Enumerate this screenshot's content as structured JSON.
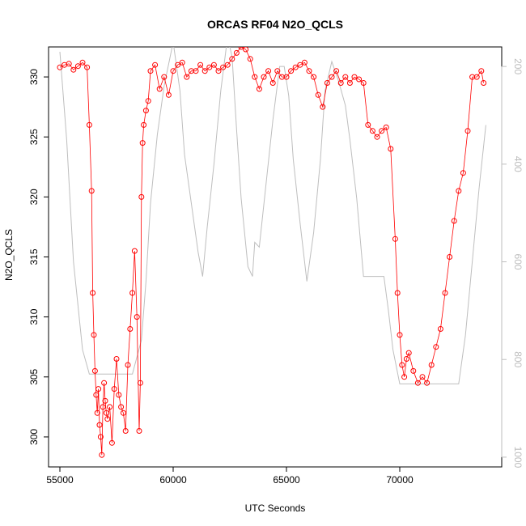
{
  "chart_data": {
    "type": "scatter",
    "title": "ORCAS RF04 N2O_QCLS",
    "xlabel": "UTC Seconds",
    "ylabel": "N2O_QCLS",
    "xlim": [
      54500,
      74500
    ],
    "ylim": [
      297.5,
      332.5
    ],
    "y2lim": [
      1020,
      160
    ],
    "x_ticks": [
      55000,
      60000,
      65000,
      70000
    ],
    "y_ticks": [
      300,
      305,
      310,
      315,
      320,
      325,
      330
    ],
    "y2_ticks": [
      200,
      400,
      600,
      800,
      1000
    ],
    "colors": {
      "points": "#ff0000",
      "secondary": "#bebebe",
      "axis": "#000000"
    },
    "series": [
      {
        "name": "N2O_QCLS",
        "axis": "left",
        "style": "points-and-line",
        "x": [
          55000,
          55200,
          55400,
          55600,
          55800,
          56000,
          56200,
          56300,
          56400,
          56450,
          56500,
          56550,
          56600,
          56650,
          56700,
          56750,
          56800,
          56850,
          56900,
          56950,
          57000,
          57050,
          57100,
          57200,
          57300,
          57400,
          57500,
          57600,
          57700,
          57800,
          57900,
          58000,
          58100,
          58200,
          58300,
          58400,
          58500,
          58550,
          58600,
          58650,
          58700,
          58800,
          58900,
          59000,
          59200,
          59400,
          59600,
          59800,
          60000,
          60200,
          60400,
          60600,
          60800,
          61000,
          61200,
          61400,
          61600,
          61800,
          62000,
          62200,
          62400,
          62600,
          62800,
          63000,
          63200,
          63400,
          63600,
          63800,
          64000,
          64200,
          64400,
          64600,
          64800,
          65000,
          65200,
          65400,
          65600,
          65800,
          66000,
          66200,
          66400,
          66600,
          66800,
          67000,
          67200,
          67400,
          67600,
          67800,
          68000,
          68200,
          68400,
          68600,
          68800,
          69000,
          69200,
          69400,
          69600,
          69800,
          69900,
          70000,
          70100,
          70200,
          70300,
          70400,
          70600,
          70800,
          71000,
          71200,
          71400,
          71600,
          71800,
          72000,
          72200,
          72400,
          72600,
          72800,
          73000,
          73200,
          73400,
          73600,
          73700
        ],
        "values": [
          330.8,
          331.0,
          331.1,
          330.6,
          330.9,
          331.2,
          330.8,
          326.0,
          320.5,
          312.0,
          308.5,
          305.5,
          303.5,
          302.0,
          304.0,
          301.0,
          300.0,
          298.5,
          302.5,
          304.5,
          303.0,
          302.0,
          301.5,
          302.5,
          299.5,
          304.0,
          306.5,
          303.5,
          302.5,
          302.0,
          300.5,
          306.0,
          309.0,
          312.0,
          315.5,
          310.0,
          300.5,
          304.5,
          320.0,
          324.5,
          326.0,
          327.2,
          328.0,
          330.5,
          331.0,
          329.0,
          330.0,
          328.5,
          330.5,
          331.0,
          331.2,
          330.0,
          330.5,
          330.5,
          331.0,
          330.5,
          330.8,
          331.0,
          330.5,
          330.8,
          331.0,
          331.5,
          332.0,
          332.5,
          332.3,
          331.5,
          330.0,
          329.0,
          330.0,
          330.5,
          329.5,
          330.5,
          330.0,
          330.0,
          330.5,
          330.8,
          331.0,
          331.2,
          330.5,
          330.0,
          328.5,
          327.5,
          329.5,
          330.0,
          330.5,
          329.5,
          330.0,
          329.5,
          330.0,
          329.8,
          329.5,
          326.0,
          325.5,
          325.0,
          325.5,
          325.8,
          324.0,
          316.5,
          312.0,
          308.5,
          306.0,
          305.0,
          306.5,
          307.0,
          305.5,
          304.5,
          305.0,
          304.5,
          306.0,
          307.5,
          309.0,
          312.0,
          315.0,
          318.0,
          320.5,
          322.0,
          325.5,
          330.0,
          330.0,
          330.5,
          329.5
        ]
      },
      {
        "name": "secondary",
        "axis": "right",
        "style": "line",
        "x": [
          55000,
          55300,
          55600,
          56000,
          56300,
          56600,
          57000,
          57400,
          57800,
          58200,
          58600,
          58800,
          59000,
          59300,
          59600,
          60000,
          60300,
          60500,
          60800,
          61100,
          61300,
          61500,
          61800,
          62100,
          62400,
          62600,
          62800,
          63000,
          63300,
          63500,
          63600,
          63800,
          64100,
          64400,
          64700,
          64900,
          65100,
          65300,
          65600,
          65900,
          66200,
          66500,
          66700,
          67000,
          67300,
          67600,
          67800,
          68100,
          68400,
          68700,
          69000,
          69300,
          69500,
          69700,
          70000,
          70300,
          70600,
          71000,
          71400,
          71800,
          72200,
          72600,
          72900,
          73200,
          73500,
          73800
        ],
        "values": [
          170,
          350,
          600,
          780,
          830,
          830,
          830,
          830,
          830,
          830,
          760,
          640,
          480,
          340,
          240,
          150,
          250,
          380,
          480,
          580,
          630,
          530,
          400,
          250,
          140,
          180,
          330,
          470,
          610,
          630,
          560,
          570,
          440,
          310,
          200,
          200,
          260,
          390,
          520,
          640,
          540,
          390,
          250,
          190,
          230,
          280,
          350,
          470,
          630,
          630,
          630,
          630,
          700,
          780,
          850,
          850,
          850,
          850,
          850,
          850,
          850,
          850,
          750,
          600,
          450,
          320
        ]
      }
    ]
  }
}
